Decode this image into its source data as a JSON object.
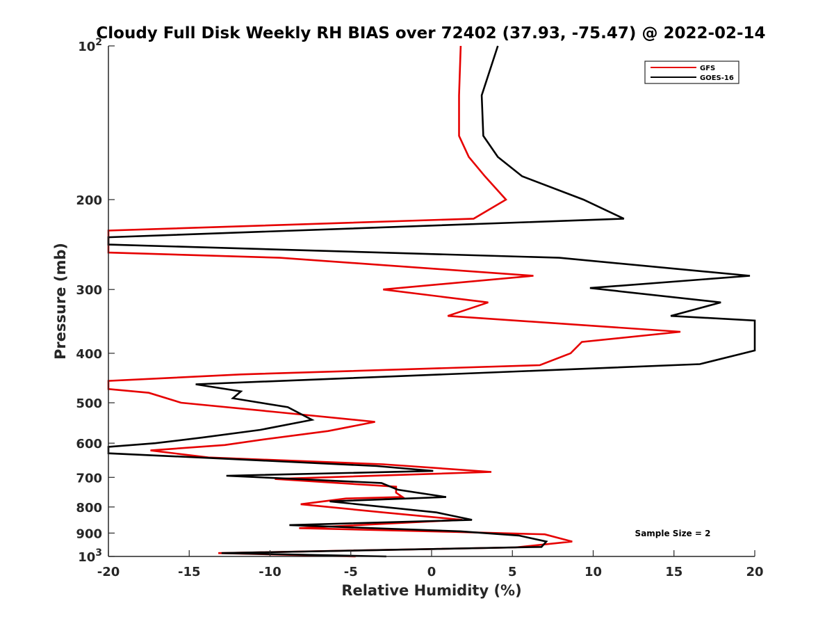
{
  "chart_data": {
    "type": "line",
    "title": "Cloudy Full Disk Weekly RH BIAS over 72402 (37.93, -75.47) @ 2022-02-14",
    "xlabel": "Relative Humidity (%)",
    "ylabel": "Pressure (mb)",
    "xlim": [
      -20,
      20
    ],
    "ylim": [
      100,
      1000
    ],
    "y_scale": "log",
    "y_reversed": true,
    "grid": false,
    "legend_position": "top-right",
    "x_ticks": [
      "-20",
      "-15",
      "-10",
      "-5",
      "0",
      "5",
      "10",
      "15",
      "20"
    ],
    "y_ticks": [
      {
        "value": 100,
        "base": "10",
        "exp": "2",
        "text": ""
      },
      {
        "value": 200,
        "text": "200"
      },
      {
        "value": 300,
        "text": "300"
      },
      {
        "value": 400,
        "text": "400"
      },
      {
        "value": 500,
        "text": "500"
      },
      {
        "value": 600,
        "text": "600"
      },
      {
        "value": 700,
        "text": "700"
      },
      {
        "value": 800,
        "text": "800"
      },
      {
        "value": 900,
        "text": "900"
      },
      {
        "value": 1000,
        "base": "10",
        "exp": "3",
        "text": ""
      }
    ],
    "annotation": "Sample Size = 2",
    "series": [
      {
        "name": "GFS",
        "color": "#e60000",
        "points": [
          {
            "x": 1.8,
            "y": 100
          },
          {
            "x": 1.7,
            "y": 125
          },
          {
            "x": 1.7,
            "y": 150
          },
          {
            "x": 2.3,
            "y": 165
          },
          {
            "x": 3.3,
            "y": 180
          },
          {
            "x": 4.6,
            "y": 200
          },
          {
            "x": 2.6,
            "y": 218
          },
          {
            "x": -20.0,
            "y": 230
          },
          {
            "x": -20.0,
            "y": 254
          },
          {
            "x": -9.4,
            "y": 260
          },
          {
            "x": 6.3,
            "y": 282
          },
          {
            "x": -3.0,
            "y": 300
          },
          {
            "x": 3.5,
            "y": 318
          },
          {
            "x": 1.0,
            "y": 338
          },
          {
            "x": 15.4,
            "y": 363
          },
          {
            "x": 9.3,
            "y": 380
          },
          {
            "x": 8.6,
            "y": 400
          },
          {
            "x": 6.7,
            "y": 422
          },
          {
            "x": -11.8,
            "y": 440
          },
          {
            "x": -20.0,
            "y": 453
          },
          {
            "x": -20.0,
            "y": 470
          },
          {
            "x": -17.5,
            "y": 478
          },
          {
            "x": -15.5,
            "y": 500
          },
          {
            "x": -10.0,
            "y": 520
          },
          {
            "x": -3.5,
            "y": 545
          },
          {
            "x": -6.4,
            "y": 568
          },
          {
            "x": -10.4,
            "y": 590
          },
          {
            "x": -12.8,
            "y": 605
          },
          {
            "x": -17.4,
            "y": 620
          },
          {
            "x": -13.8,
            "y": 640
          },
          {
            "x": -3.0,
            "y": 660
          },
          {
            "x": 3.7,
            "y": 683
          },
          {
            "x": -9.7,
            "y": 705
          },
          {
            "x": -2.2,
            "y": 730
          },
          {
            "x": -2.2,
            "y": 750
          },
          {
            "x": -1.8,
            "y": 765
          },
          {
            "x": -5.3,
            "y": 770
          },
          {
            "x": -8.1,
            "y": 790
          },
          {
            "x": -3.0,
            "y": 820
          },
          {
            "x": 1.9,
            "y": 848
          },
          {
            "x": -8.2,
            "y": 880
          },
          {
            "x": 1.2,
            "y": 895
          },
          {
            "x": 7.0,
            "y": 905
          },
          {
            "x": 8.7,
            "y": 935
          },
          {
            "x": 5.2,
            "y": 960
          },
          {
            "x": -13.2,
            "y": 985
          },
          {
            "x": -4.7,
            "y": 1000
          }
        ]
      },
      {
        "name": "GOES-16",
        "color": "#000000",
        "points": [
          {
            "x": 4.1,
            "y": 100
          },
          {
            "x": 3.1,
            "y": 125
          },
          {
            "x": 3.2,
            "y": 150
          },
          {
            "x": 4.1,
            "y": 165
          },
          {
            "x": 5.6,
            "y": 180
          },
          {
            "x": 9.4,
            "y": 200
          },
          {
            "x": 11.9,
            "y": 218
          },
          {
            "x": -20.0,
            "y": 237
          },
          {
            "x": -20.0,
            "y": 245
          },
          {
            "x": 7.9,
            "y": 260
          },
          {
            "x": 19.7,
            "y": 282
          },
          {
            "x": 9.8,
            "y": 298
          },
          {
            "x": 17.9,
            "y": 318
          },
          {
            "x": 14.8,
            "y": 338
          },
          {
            "x": 20.0,
            "y": 345
          },
          {
            "x": 20.0,
            "y": 395
          },
          {
            "x": 16.6,
            "y": 420
          },
          {
            "x": -14.6,
            "y": 460
          },
          {
            "x": -11.8,
            "y": 475
          },
          {
            "x": -12.3,
            "y": 490
          },
          {
            "x": -8.9,
            "y": 510
          },
          {
            "x": -7.4,
            "y": 540
          },
          {
            "x": -10.6,
            "y": 565
          },
          {
            "x": -14.2,
            "y": 585
          },
          {
            "x": -17.1,
            "y": 600
          },
          {
            "x": -20.0,
            "y": 610
          },
          {
            "x": -20.0,
            "y": 628
          },
          {
            "x": -14.4,
            "y": 640
          },
          {
            "x": -3.4,
            "y": 665
          },
          {
            "x": 0.1,
            "y": 680
          },
          {
            "x": -12.7,
            "y": 695
          },
          {
            "x": -3.1,
            "y": 718
          },
          {
            "x": -2.1,
            "y": 740
          },
          {
            "x": 0.9,
            "y": 765
          },
          {
            "x": -6.3,
            "y": 780
          },
          {
            "x": 0.3,
            "y": 820
          },
          {
            "x": 2.5,
            "y": 848
          },
          {
            "x": -8.8,
            "y": 868
          },
          {
            "x": 1.8,
            "y": 893
          },
          {
            "x": 5.4,
            "y": 910
          },
          {
            "x": 7.1,
            "y": 935
          },
          {
            "x": 6.8,
            "y": 958
          },
          {
            "x": -13.0,
            "y": 985
          },
          {
            "x": -2.8,
            "y": 1000
          }
        ]
      }
    ]
  }
}
